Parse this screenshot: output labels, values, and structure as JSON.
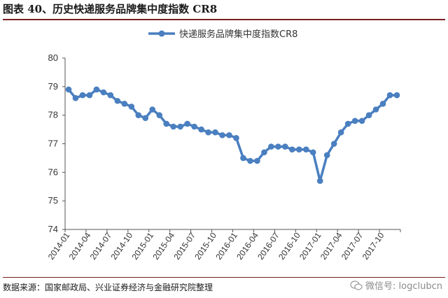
{
  "figure": {
    "title": "图表 40、历史快递服务品牌集中度指数 CR8",
    "source": "数据来源：国家邮政局、兴业证券经济与金融研究院整理",
    "watermark": "微信号: logclubcn",
    "watermark_icon": "wechat-icon"
  },
  "chart_data": {
    "type": "line",
    "title": "",
    "xlabel": "",
    "ylabel": "",
    "ylim": [
      74,
      80
    ],
    "yticks": [
      74,
      75,
      76,
      77,
      78,
      79,
      80
    ],
    "grid": false,
    "legend_position": "top-center",
    "line_color": "#4a7fc0",
    "x": [
      "2014-01",
      "2014-02",
      "2014-03",
      "2014-04",
      "2014-05",
      "2014-06",
      "2014-07",
      "2014-08",
      "2014-09",
      "2014-10",
      "2014-11",
      "2014-12",
      "2015-01",
      "2015-02",
      "2015-03",
      "2015-04",
      "2015-05",
      "2015-06",
      "2015-07",
      "2015-08",
      "2015-09",
      "2015-10",
      "2015-11",
      "2015-12",
      "2016-01",
      "2016-02",
      "2016-03",
      "2016-04",
      "2016-05",
      "2016-06",
      "2016-07",
      "2016-08",
      "2016-09",
      "2016-10",
      "2016-11",
      "2016-12",
      "2017-01",
      "2017-02",
      "2017-03",
      "2017-04",
      "2017-05",
      "2017-06",
      "2017-07",
      "2017-08",
      "2017-09",
      "2017-10",
      "2017-11",
      "2017-12"
    ],
    "tick_labels": [
      "2014-01",
      "2014-04",
      "2014-07",
      "2014-10",
      "2015-01",
      "2015-04",
      "2015-07",
      "2015-10",
      "2016-01",
      "2016-04",
      "2016-07",
      "2016-10",
      "2017-01",
      "2017-04",
      "2017-07",
      "2017-10"
    ],
    "series": [
      {
        "name": "快递服务品牌集中度指数CR8",
        "values": [
          78.9,
          78.6,
          78.7,
          78.7,
          78.9,
          78.8,
          78.7,
          78.5,
          78.4,
          78.3,
          78.0,
          77.9,
          78.2,
          78.0,
          77.7,
          77.6,
          77.6,
          77.7,
          77.6,
          77.5,
          77.4,
          77.4,
          77.3,
          77.3,
          77.2,
          76.5,
          76.4,
          76.4,
          76.7,
          76.9,
          76.9,
          76.9,
          76.8,
          76.8,
          76.8,
          76.7,
          75.7,
          76.6,
          77.0,
          77.4,
          77.7,
          77.8,
          77.8,
          78.0,
          78.2,
          78.4,
          78.7,
          78.7
        ]
      }
    ]
  }
}
